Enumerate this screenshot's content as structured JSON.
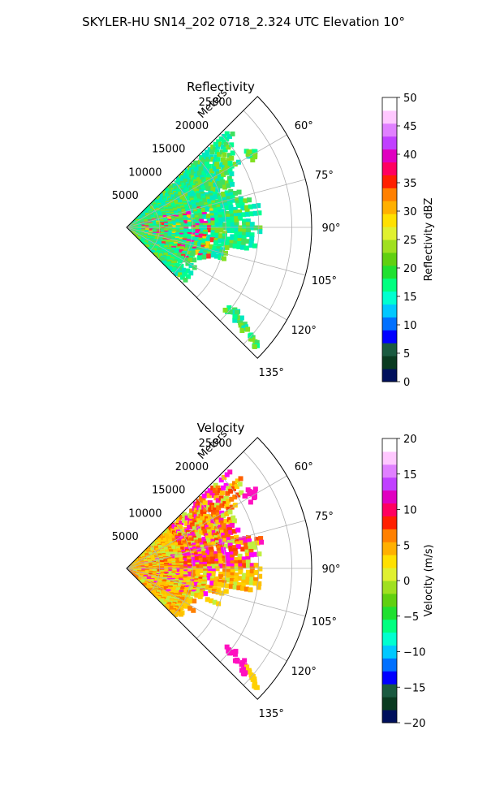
{
  "figure": {
    "suptitle": "SKYLER-HU  SN14_202  0718_2.324 UTC Elevation 10°"
  },
  "chart_data": [
    {
      "type": "heatmap",
      "title": "Reflectivity",
      "projection": "polar sector",
      "theta_ticks": [
        "60°",
        "75°",
        "90°",
        "105°",
        "120°",
        "135°"
      ],
      "theta_range_deg": [
        45,
        135
      ],
      "r_ticks": [
        "5000",
        "10000",
        "15000",
        "20000",
        "25000"
      ],
      "r_range": [
        0,
        28000
      ],
      "r_label": "Meters",
      "grid": true,
      "colorbar": {
        "label": "Reflectivity dBZ",
        "ticks": [
          "0",
          "5",
          "10",
          "15",
          "20",
          "25",
          "30",
          "35",
          "40",
          "45",
          "50"
        ],
        "range": [
          0,
          50
        ],
        "colors": [
          "#00105c",
          "#0a3a20",
          "#1a5a40",
          "#0000ff",
          "#0070ff",
          "#00c8ff",
          "#00ffd0",
          "#00ff80",
          "#20e030",
          "#60d010",
          "#a0e020",
          "#e0f030",
          "#ffe000",
          "#ffb000",
          "#ff8000",
          "#ff2000",
          "#ff0060",
          "#e000c0",
          "#c040ff",
          "#e080ff",
          "#ffc8ff",
          "#ffffff"
        ]
      },
      "data_colors": {
        "light": [
          "#00ff90",
          "#00e8c0",
          "#40e060",
          "#80e020"
        ],
        "core": [
          "#ff1080",
          "#ff3030",
          "#ff00c0",
          "#ffd000"
        ]
      }
    },
    {
      "type": "heatmap",
      "title": "Velocity",
      "projection": "polar sector",
      "theta_ticks": [
        "60°",
        "75°",
        "90°",
        "105°",
        "120°",
        "135°"
      ],
      "theta_range_deg": [
        45,
        135
      ],
      "r_ticks": [
        "5000",
        "10000",
        "15000",
        "20000",
        "25000"
      ],
      "r_range": [
        0,
        28000
      ],
      "r_label": "Meters",
      "grid": true,
      "colorbar": {
        "label": "Velocity (m/s)",
        "ticks": [
          "−20",
          "−15",
          "−10",
          "−5",
          "0",
          "5",
          "10",
          "15",
          "20"
        ],
        "range": [
          -20,
          20
        ],
        "colors": [
          "#00105c",
          "#0a3a20",
          "#1a5a40",
          "#0000ff",
          "#0070ff",
          "#00c8ff",
          "#00ffd0",
          "#00ff80",
          "#20e030",
          "#60d010",
          "#a0e020",
          "#e0f030",
          "#ffe000",
          "#ffb000",
          "#ff8000",
          "#ff2000",
          "#ff0060",
          "#e000c0",
          "#c040ff",
          "#e080ff",
          "#ffc8ff",
          "#ffffff"
        ]
      },
      "data_colors": {
        "light": [
          "#ffd000",
          "#ffc000",
          "#c0f040",
          "#ff8000"
        ],
        "core": [
          "#ff4000",
          "#ff6000",
          "#ff10c0",
          "#ff00ff"
        ]
      }
    }
  ]
}
